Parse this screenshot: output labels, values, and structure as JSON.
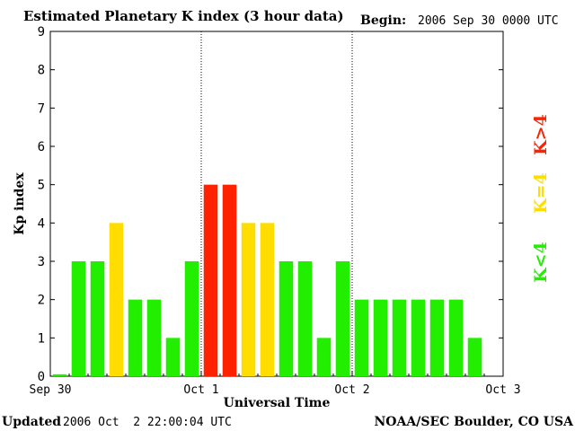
{
  "header": {
    "title": "Estimated Planetary K index (3 hour data)",
    "begin_label": "Begin:",
    "begin_value": "2006 Sep 30 0000 UTC"
  },
  "footer": {
    "updated_label": "Updated",
    "updated_value": "2006 Oct  2 22:00:04 UTC",
    "source": "NOAA/SEC Boulder, CO USA"
  },
  "legend": {
    "red": "K>4",
    "yellow": "K=4",
    "green": "K<4"
  },
  "colors": {
    "green": "#22ee00",
    "yellow": "#ffdd00",
    "red": "#ff2200"
  },
  "chart_data": {
    "type": "bar",
    "title": "Estimated Planetary K index (3 hour data)",
    "xlabel": "Universal Time",
    "ylabel": "Kp index",
    "ylim": [
      0,
      9
    ],
    "yticks": [
      "0",
      "1",
      "2",
      "3",
      "4",
      "5",
      "6",
      "7",
      "8",
      "9"
    ],
    "xticks": [
      "Sep 30",
      "Oct 1",
      "Oct 2",
      "Oct 3"
    ],
    "day_dividers": [
      "Oct 1",
      "Oct 2"
    ],
    "bins_per_day": 8,
    "values": [
      0.05,
      3,
      3,
      4,
      2,
      2,
      1,
      3,
      5,
      5,
      4,
      4,
      3,
      3,
      1,
      3,
      2,
      2,
      2,
      2,
      2,
      2,
      1
    ]
  }
}
